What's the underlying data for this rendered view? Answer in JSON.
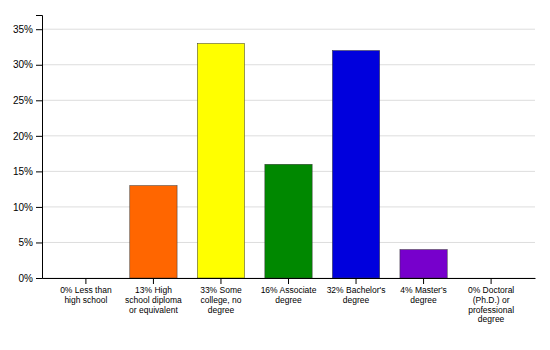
{
  "chart_data": {
    "type": "bar",
    "categories": [
      "0% Less than\nhigh school",
      "13% High\nschool diploma\nor equivalent",
      "33% Some\ncollege, no\ndegree",
      "16% Associate\ndegree",
      "32% Bachelor's\ndegree",
      "4% Master's\ndegree",
      "0% Doctoral\n(Ph.D.) or\nprofessional\ndegree"
    ],
    "values": [
      0,
      13,
      33,
      16,
      32,
      4,
      0
    ],
    "colors": [
      "#ff0000",
      "#ff6600",
      "#ffff00",
      "#008800",
      "#0000dd",
      "#7700cc",
      "#ff44cc"
    ],
    "ylim": [
      0,
      37
    ],
    "yticks": [
      {
        "value": 0,
        "label": "0%"
      },
      {
        "value": 5,
        "label": "5%"
      },
      {
        "value": 10,
        "label": "10%"
      },
      {
        "value": 15,
        "label": "15%"
      },
      {
        "value": 20,
        "label": "20%"
      },
      {
        "value": 25,
        "label": "25%"
      },
      {
        "value": 30,
        "label": "30%"
      },
      {
        "value": 35,
        "label": "35%"
      }
    ],
    "grid": true
  }
}
